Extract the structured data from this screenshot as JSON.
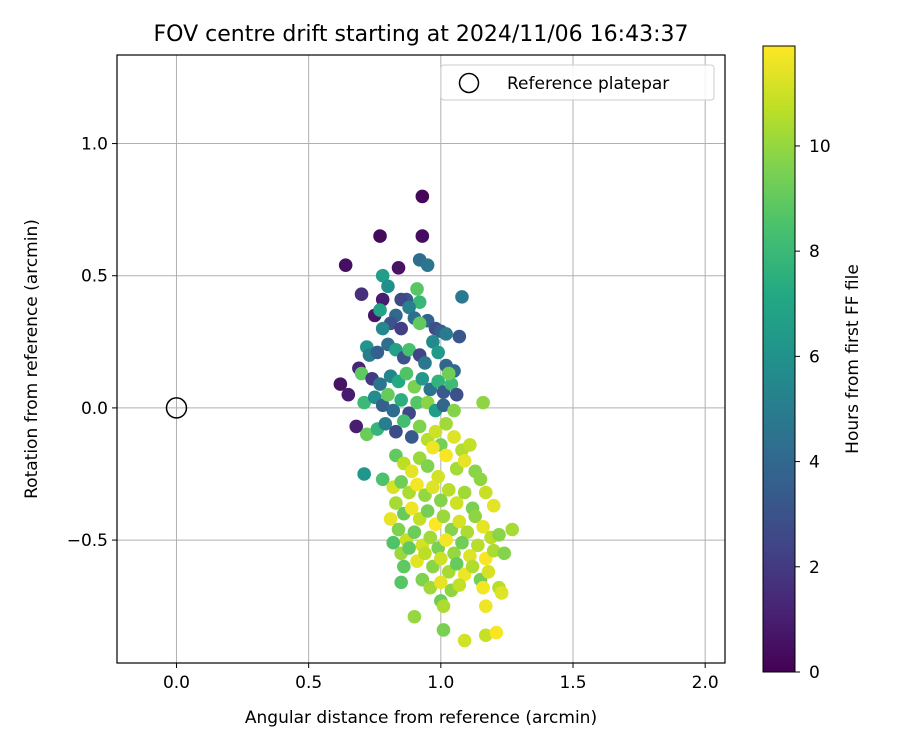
{
  "chart_data": {
    "type": "scatter",
    "title": "FOV centre drift starting at 2024/11/06 16:43:37",
    "xlabel": "Angular distance from reference (arcmin)",
    "ylabel": "Rotation from reference (arcmin)",
    "xlim": [
      -0.225,
      2.075
    ],
    "ylim": [
      -0.965,
      1.335
    ],
    "x_ticks": [
      0.0,
      0.5,
      1.0,
      1.5,
      2.0
    ],
    "x_tick_labels": [
      "0.0",
      "0.5",
      "1.0",
      "1.5",
      "2.0"
    ],
    "y_ticks": [
      -0.5,
      0.0,
      0.5,
      1.0
    ],
    "y_tick_labels": [
      "−0.5",
      "0.0",
      "0.5",
      "1.0"
    ],
    "grid": true,
    "legend": {
      "placement": "top-right",
      "entries": [
        "Reference platepar"
      ]
    },
    "colorbar": {
      "label": "Hours from first FF file",
      "range": [
        0,
        11.9
      ],
      "ticks": [
        0,
        2,
        4,
        6,
        8,
        10
      ],
      "tick_labels": [
        "0",
        "2",
        "4",
        "6",
        "8",
        "10"
      ],
      "colormap": "viridis"
    },
    "reference_point": {
      "x": 0.0,
      "y": 0.0
    },
    "points_note": "",
    "points": [
      [
        0.93,
        0.8,
        0.2
      ],
      [
        0.77,
        0.65,
        0.3
      ],
      [
        0.93,
        0.65,
        0.4
      ],
      [
        0.64,
        0.54,
        0.5
      ],
      [
        0.84,
        0.53,
        0.6
      ],
      [
        0.7,
        0.43,
        1.6
      ],
      [
        0.78,
        0.41,
        0.9
      ],
      [
        0.92,
        0.56,
        4.2
      ],
      [
        0.95,
        0.54,
        4.6
      ],
      [
        0.78,
        0.5,
        6.6
      ],
      [
        0.8,
        0.46,
        5.9
      ],
      [
        0.91,
        0.45,
        8.8
      ],
      [
        1.08,
        0.42,
        4.8
      ],
      [
        0.87,
        0.41,
        3.3
      ],
      [
        0.85,
        0.41,
        2.6
      ],
      [
        0.75,
        0.35,
        0.7
      ],
      [
        0.77,
        0.37,
        6.9
      ],
      [
        0.92,
        0.4,
        7.9
      ],
      [
        0.88,
        0.38,
        5.2
      ],
      [
        0.83,
        0.35,
        4.0
      ],
      [
        0.81,
        0.32,
        3.0
      ],
      [
        0.78,
        0.3,
        5.5
      ],
      [
        0.85,
        0.3,
        2.2
      ],
      [
        0.9,
        0.34,
        4.4
      ],
      [
        0.95,
        0.33,
        3.8
      ],
      [
        0.98,
        0.3,
        2.8
      ],
      [
        1.0,
        0.29,
        3.5
      ],
      [
        1.02,
        0.28,
        4.9
      ],
      [
        1.07,
        0.27,
        3.2
      ],
      [
        0.92,
        0.32,
        9.0
      ],
      [
        0.72,
        0.23,
        6.1
      ],
      [
        0.73,
        0.2,
        5.1
      ],
      [
        0.76,
        0.21,
        3.6
      ],
      [
        0.8,
        0.24,
        4.3
      ],
      [
        0.83,
        0.22,
        6.8
      ],
      [
        0.86,
        0.19,
        3.1
      ],
      [
        0.88,
        0.22,
        8.4
      ],
      [
        0.92,
        0.2,
        2.4
      ],
      [
        0.94,
        0.17,
        4.7
      ],
      [
        0.97,
        0.25,
        5.6
      ],
      [
        0.99,
        0.21,
        6.4
      ],
      [
        1.02,
        0.16,
        3.9
      ],
      [
        1.05,
        0.14,
        4.1
      ],
      [
        0.69,
        0.15,
        1.2
      ],
      [
        0.7,
        0.13,
        8.9
      ],
      [
        0.74,
        0.11,
        2.0
      ],
      [
        0.77,
        0.09,
        4.6
      ],
      [
        0.81,
        0.12,
        5.4
      ],
      [
        0.84,
        0.1,
        7.2
      ],
      [
        0.87,
        0.13,
        8.6
      ],
      [
        0.9,
        0.08,
        9.5
      ],
      [
        0.93,
        0.11,
        6.3
      ],
      [
        0.96,
        0.07,
        4.5
      ],
      [
        0.99,
        0.1,
        7.7
      ],
      [
        1.01,
        0.06,
        3.4
      ],
      [
        1.04,
        0.09,
        8.1
      ],
      [
        1.06,
        0.05,
        2.9
      ],
      [
        1.03,
        0.13,
        9.3
      ],
      [
        0.62,
        0.09,
        0.6
      ],
      [
        0.65,
        0.05,
        0.9
      ],
      [
        0.71,
        0.02,
        8.0
      ],
      [
        0.75,
        0.04,
        5.7
      ],
      [
        0.78,
        0.01,
        3.7
      ],
      [
        0.8,
        0.05,
        9.1
      ],
      [
        0.82,
        -0.01,
        4.2
      ],
      [
        0.85,
        0.03,
        7.5
      ],
      [
        0.88,
        -0.02,
        2.5
      ],
      [
        0.91,
        0.02,
        8.7
      ],
      [
        0.95,
        0.02,
        9.8
      ],
      [
        0.98,
        -0.01,
        6.6
      ],
      [
        1.01,
        0.01,
        3.9
      ],
      [
        1.05,
        -0.01,
        9.7
      ],
      [
        1.16,
        0.02,
        9.9
      ],
      [
        0.68,
        -0.07,
        1.0
      ],
      [
        0.72,
        -0.1,
        9.2
      ],
      [
        0.76,
        -0.08,
        7.8
      ],
      [
        0.79,
        -0.06,
        5.0
      ],
      [
        0.83,
        -0.09,
        2.7
      ],
      [
        0.86,
        -0.05,
        8.3
      ],
      [
        0.89,
        -0.11,
        3.3
      ],
      [
        0.92,
        -0.07,
        9.6
      ],
      [
        0.95,
        -0.12,
        10.6
      ],
      [
        0.98,
        -0.09,
        11.0
      ],
      [
        1.0,
        -0.14,
        9.4
      ],
      [
        1.02,
        -0.06,
        10.2
      ],
      [
        1.05,
        -0.11,
        11.3
      ],
      [
        1.08,
        -0.16,
        10.5
      ],
      [
        0.97,
        -0.15,
        11.6
      ],
      [
        0.83,
        -0.18,
        9.0
      ],
      [
        0.86,
        -0.21,
        10.7
      ],
      [
        0.89,
        -0.24,
        11.4
      ],
      [
        0.92,
        -0.19,
        10.1
      ],
      [
        0.95,
        -0.22,
        9.6
      ],
      [
        0.99,
        -0.26,
        11.1
      ],
      [
        1.02,
        -0.18,
        11.8
      ],
      [
        1.06,
        -0.23,
        10.3
      ],
      [
        1.09,
        -0.2,
        11.5
      ],
      [
        1.11,
        -0.14,
        10.8
      ],
      [
        1.13,
        -0.24,
        9.8
      ],
      [
        0.71,
        -0.25,
        6.2
      ],
      [
        0.78,
        -0.27,
        8.5
      ],
      [
        0.82,
        -0.3,
        11.2
      ],
      [
        0.85,
        -0.28,
        9.3
      ],
      [
        0.88,
        -0.32,
        10.4
      ],
      [
        0.91,
        -0.29,
        11.7
      ],
      [
        0.94,
        -0.33,
        10.0
      ],
      [
        0.97,
        -0.3,
        11.3
      ],
      [
        1.0,
        -0.35,
        9.7
      ],
      [
        1.03,
        -0.31,
        10.6
      ],
      [
        1.06,
        -0.36,
        11.0
      ],
      [
        1.09,
        -0.32,
        10.2
      ],
      [
        1.12,
        -0.38,
        9.5
      ],
      [
        1.15,
        -0.27,
        9.9
      ],
      [
        1.17,
        -0.32,
        10.9
      ],
      [
        1.2,
        -0.37,
        11.4
      ],
      [
        0.83,
        -0.36,
        10.3
      ],
      [
        0.86,
        -0.4,
        9.1
      ],
      [
        0.89,
        -0.38,
        11.6
      ],
      [
        0.92,
        -0.42,
        10.8
      ],
      [
        0.95,
        -0.39,
        9.4
      ],
      [
        0.98,
        -0.44,
        11.9
      ],
      [
        1.01,
        -0.41,
        10.1
      ],
      [
        1.04,
        -0.46,
        9.7
      ],
      [
        1.07,
        -0.43,
        11.2
      ],
      [
        1.1,
        -0.47,
        10.4
      ],
      [
        1.13,
        -0.41,
        9.9
      ],
      [
        1.16,
        -0.45,
        11.5
      ],
      [
        1.19,
        -0.49,
        10.7
      ],
      [
        1.22,
        -0.48,
        9.8
      ],
      [
        1.27,
        -0.46,
        10.3
      ],
      [
        0.81,
        -0.42,
        11.5
      ],
      [
        0.84,
        -0.46,
        9.6
      ],
      [
        0.87,
        -0.5,
        10.9
      ],
      [
        0.9,
        -0.47,
        9.2
      ],
      [
        0.93,
        -0.52,
        11.1
      ],
      [
        0.96,
        -0.49,
        10.2
      ],
      [
        0.99,
        -0.53,
        9.5
      ],
      [
        1.02,
        -0.5,
        11.7
      ],
      [
        1.05,
        -0.55,
        10.0
      ],
      [
        1.08,
        -0.51,
        9.3
      ],
      [
        1.11,
        -0.56,
        11.3
      ],
      [
        1.14,
        -0.52,
        10.6
      ],
      [
        1.17,
        -0.57,
        11.8
      ],
      [
        1.2,
        -0.54,
        10.4
      ],
      [
        1.24,
        -0.55,
        9.7
      ],
      [
        0.82,
        -0.51,
        8.6
      ],
      [
        0.85,
        -0.55,
        10.1
      ],
      [
        0.88,
        -0.53,
        9.0
      ],
      [
        0.91,
        -0.58,
        11.4
      ],
      [
        0.94,
        -0.55,
        10.7
      ],
      [
        0.97,
        -0.6,
        9.8
      ],
      [
        1.0,
        -0.57,
        11.0
      ],
      [
        1.03,
        -0.62,
        10.3
      ],
      [
        1.06,
        -0.59,
        9.1
      ],
      [
        1.09,
        -0.63,
        11.6
      ],
      [
        1.12,
        -0.6,
        10.5
      ],
      [
        1.15,
        -0.65,
        9.4
      ],
      [
        1.18,
        -0.62,
        11.2
      ],
      [
        0.86,
        -0.6,
        8.9
      ],
      [
        0.93,
        -0.65,
        9.6
      ],
      [
        0.96,
        -0.68,
        10.2
      ],
      [
        1.0,
        -0.66,
        11.5
      ],
      [
        1.04,
        -0.69,
        9.9
      ],
      [
        1.07,
        -0.67,
        10.8
      ],
      [
        1.16,
        -0.68,
        11.7
      ],
      [
        1.22,
        -0.68,
        10.6
      ],
      [
        1.23,
        -0.7,
        11.3
      ],
      [
        0.85,
        -0.66,
        8.7
      ],
      [
        1.0,
        -0.73,
        9.2
      ],
      [
        1.01,
        -0.75,
        10.4
      ],
      [
        1.17,
        -0.75,
        11.6
      ],
      [
        0.9,
        -0.79,
        10.0
      ],
      [
        1.01,
        -0.84,
        9.5
      ],
      [
        1.09,
        -0.88,
        11.1
      ],
      [
        1.17,
        -0.86,
        10.9
      ],
      [
        1.21,
        -0.85,
        11.8
      ]
    ]
  }
}
